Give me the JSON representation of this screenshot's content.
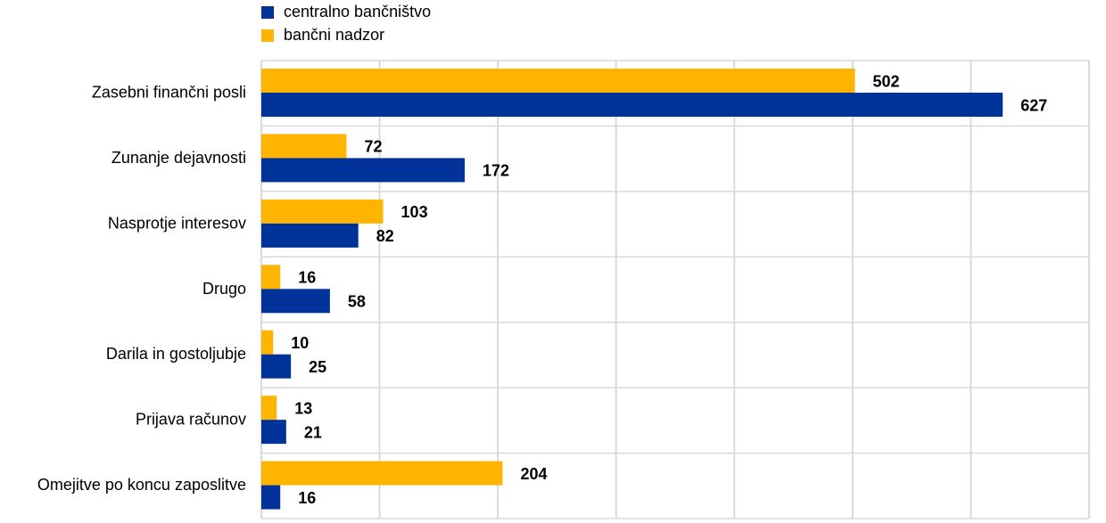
{
  "chart_data": {
    "type": "hbar",
    "categories": [
      "Zasebni finančni posli",
      "Zunanje dejavnosti",
      "Nasprotje interesov",
      "Drugo",
      "Darila in gostoljubje",
      "Prijava računov",
      "Omejitve po koncu zaposlitve"
    ],
    "series": [
      {
        "name": "centralno bančništvo",
        "color": "#003399",
        "values": [
          627,
          172,
          82,
          58,
          25,
          21,
          16
        ]
      },
      {
        "name": "bančni nadzor",
        "color": "#ffb400",
        "values": [
          502,
          72,
          103,
          16,
          10,
          13,
          204
        ]
      }
    ],
    "xlim": [
      0,
      700
    ],
    "xticks": [
      0,
      100,
      200,
      300,
      400,
      500,
      600,
      700
    ],
    "grid": true
  }
}
